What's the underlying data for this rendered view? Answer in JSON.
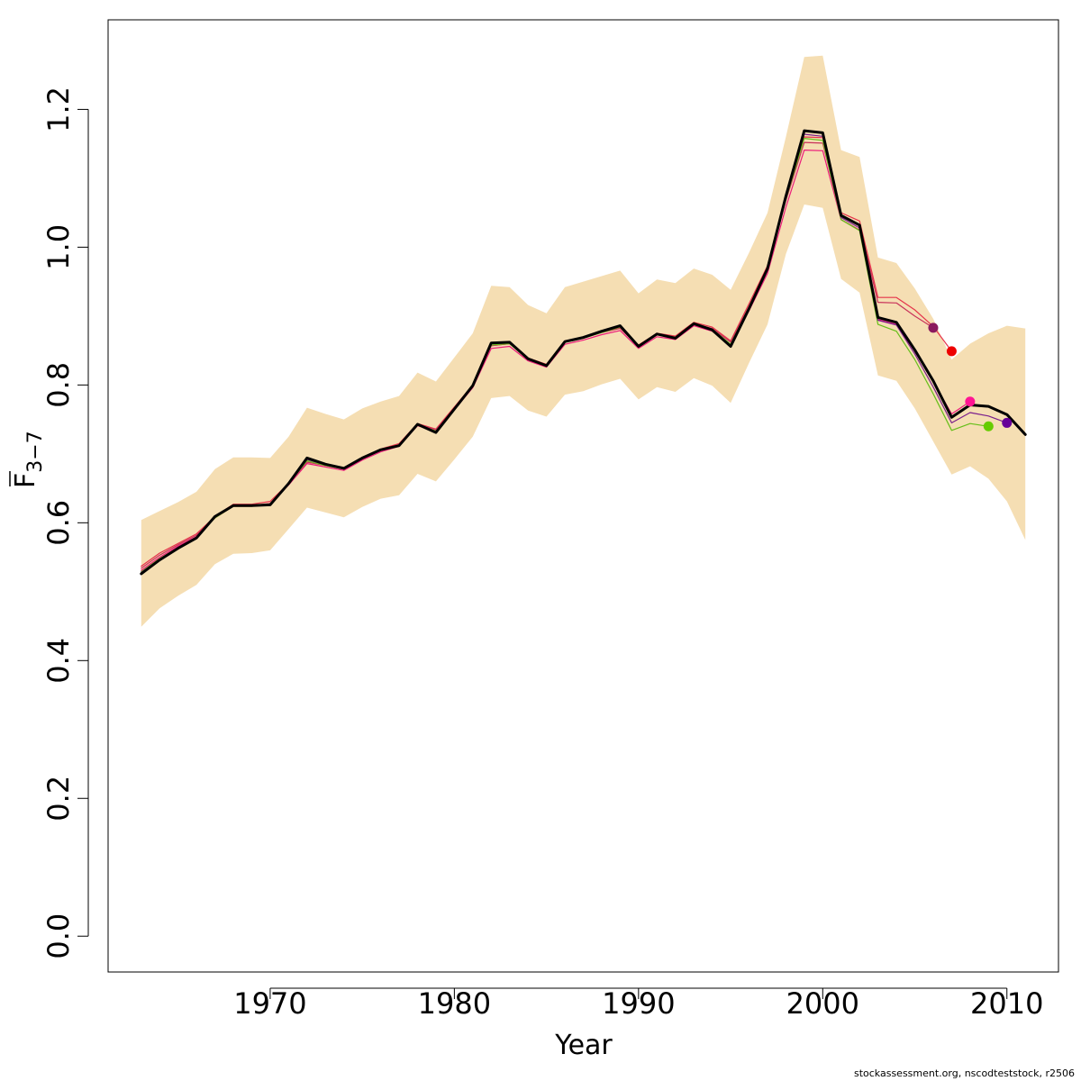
{
  "chart_data": {
    "type": "line",
    "xlabel": "Year",
    "ylabel_main": "F",
    "ylabel_sub": "3−7",
    "xlim": [
      1961.2,
      2012.8
    ],
    "ylim": [
      -0.052,
      1.33
    ],
    "x_ticks": [
      1970,
      1980,
      1990,
      2000,
      2010
    ],
    "x_tick_labels": [
      "1970",
      "1980",
      "1990",
      "2000",
      "2010"
    ],
    "y_ticks": [
      0.0,
      0.2,
      0.4,
      0.6,
      0.8,
      1.0,
      1.2
    ],
    "y_tick_labels": [
      "0.0",
      "0.2",
      "0.4",
      "0.6",
      "0.8",
      "1.0",
      "1.2"
    ],
    "grid": false,
    "band_color": "#f5deb3",
    "main_series_color": "#000000",
    "confidence_band": {
      "years": [
        1963,
        1964,
        1965,
        1966,
        1967,
        1968,
        1969,
        1970,
        1971,
        1972,
        1973,
        1974,
        1975,
        1976,
        1977,
        1978,
        1979,
        1980,
        1981,
        1982,
        1983,
        1984,
        1985,
        1986,
        1987,
        1988,
        1989,
        1990,
        1991,
        1992,
        1993,
        1994,
        1995,
        1996,
        1997,
        1998,
        1999,
        2000,
        2001,
        2002,
        2003,
        2004,
        2005,
        2006,
        2007,
        2008,
        2009,
        2010,
        2011
      ],
      "lower": [
        0.449,
        0.476,
        0.494,
        0.51,
        0.54,
        0.555,
        0.556,
        0.56,
        0.591,
        0.622,
        0.615,
        0.608,
        0.623,
        0.635,
        0.64,
        0.671,
        0.66,
        0.692,
        0.725,
        0.781,
        0.784,
        0.763,
        0.754,
        0.786,
        0.791,
        0.801,
        0.809,
        0.779,
        0.797,
        0.79,
        0.81,
        0.799,
        0.774,
        0.832,
        0.888,
        0.99,
        1.062,
        1.057,
        0.954,
        0.934,
        0.814,
        0.806,
        0.766,
        0.718,
        0.67,
        0.682,
        0.664,
        0.631,
        0.575
      ],
      "upper": [
        0.604,
        0.617,
        0.63,
        0.645,
        0.678,
        0.695,
        0.695,
        0.694,
        0.725,
        0.767,
        0.758,
        0.75,
        0.766,
        0.776,
        0.784,
        0.818,
        0.805,
        0.84,
        0.875,
        0.944,
        0.942,
        0.916,
        0.904,
        0.942,
        0.95,
        0.958,
        0.966,
        0.933,
        0.953,
        0.948,
        0.969,
        0.96,
        0.938,
        0.992,
        1.05,
        1.16,
        1.276,
        1.278,
        1.141,
        1.131,
        0.985,
        0.977,
        0.94,
        0.896,
        0.837,
        0.86,
        0.875,
        0.886,
        0.882
      ]
    },
    "series": [
      {
        "color": "#000000",
        "width": 3,
        "x": [
          1963,
          1964,
          1965,
          1966,
          1967,
          1968,
          1969,
          1970,
          1971,
          1972,
          1973,
          1974,
          1975,
          1976,
          1977,
          1978,
          1979,
          1980,
          1981,
          1982,
          1983,
          1984,
          1985,
          1986,
          1987,
          1988,
          1989,
          1990,
          1991,
          1992,
          1993,
          1994,
          1995,
          1996,
          1997,
          1998,
          1999,
          2000,
          2001,
          2002,
          2003,
          2004,
          2005,
          2006,
          2007,
          2008,
          2009,
          2010,
          2011
        ],
        "y": [
          0.526,
          0.546,
          0.563,
          0.578,
          0.609,
          0.625,
          0.625,
          0.626,
          0.657,
          0.694,
          0.685,
          0.679,
          0.694,
          0.706,
          0.712,
          0.743,
          0.731,
          0.765,
          0.799,
          0.861,
          0.862,
          0.838,
          0.828,
          0.863,
          0.869,
          0.878,
          0.886,
          0.856,
          0.874,
          0.868,
          0.889,
          0.88,
          0.856,
          0.911,
          0.969,
          1.074,
          1.169,
          1.166,
          1.046,
          1.032,
          0.898,
          0.891,
          0.851,
          0.806,
          0.753,
          0.771,
          0.769,
          0.757,
          0.728
        ]
      },
      {
        "color": "#e5334b",
        "width": 1.2,
        "x": [
          1963,
          1964,
          1965,
          1966,
          1967,
          1968,
          1969,
          1970,
          1971,
          1972,
          1973,
          1974,
          1975,
          1976,
          1977,
          1978,
          1979,
          1980,
          1981,
          1982,
          1983,
          1984,
          1985,
          1986,
          1987,
          1988,
          1989,
          1990,
          1991,
          1992,
          1993,
          1994,
          1995,
          1996,
          1997,
          1998,
          1999,
          2000,
          2001,
          2002,
          2003,
          2004,
          2005,
          2006,
          2007
        ],
        "y": [
          0.537,
          0.556,
          0.57,
          0.584,
          0.609,
          0.627,
          0.627,
          0.631,
          0.657,
          0.688,
          0.684,
          0.678,
          0.694,
          0.707,
          0.715,
          0.744,
          0.736,
          0.768,
          0.8,
          0.857,
          0.86,
          0.839,
          0.83,
          0.864,
          0.869,
          0.877,
          0.883,
          0.858,
          0.875,
          0.871,
          0.891,
          0.884,
          0.864,
          0.918,
          0.973,
          1.073,
          1.16,
          1.159,
          1.05,
          1.038,
          0.927,
          0.927,
          0.909,
          0.885,
          0.849
        ]
      },
      {
        "color": "#c8325a",
        "width": 1.2,
        "x": [
          1963,
          1964,
          1965,
          1966,
          1967,
          1968,
          1969,
          1970,
          1971,
          1972,
          1973,
          1974,
          1975,
          1976,
          1977,
          1978,
          1979,
          1980,
          1981,
          1982,
          1983,
          1984,
          1985,
          1986,
          1987,
          1988,
          1989,
          1990,
          1991,
          1992,
          1993,
          1994,
          1995,
          1996,
          1997,
          1998,
          1999,
          2000,
          2001,
          2002,
          2003,
          2004,
          2005,
          2006
        ],
        "y": [
          0.534,
          0.553,
          0.568,
          0.582,
          0.608,
          0.625,
          0.625,
          0.628,
          0.656,
          0.688,
          0.683,
          0.678,
          0.693,
          0.705,
          0.713,
          0.743,
          0.735,
          0.766,
          0.798,
          0.857,
          0.86,
          0.838,
          0.829,
          0.862,
          0.868,
          0.876,
          0.882,
          0.856,
          0.873,
          0.869,
          0.889,
          0.882,
          0.862,
          0.914,
          0.97,
          1.068,
          1.152,
          1.151,
          1.045,
          1.032,
          0.92,
          0.919,
          0.9,
          0.883
        ]
      },
      {
        "color": "#ec1a7a",
        "width": 1.2,
        "x": [
          1963,
          1964,
          1965,
          1966,
          1967,
          1968,
          1969,
          1970,
          1971,
          1972,
          1973,
          1974,
          1975,
          1976,
          1977,
          1978,
          1979,
          1980,
          1981,
          1982,
          1983,
          1984,
          1985,
          1986,
          1987,
          1988,
          1989,
          1990,
          1991,
          1992,
          1993,
          1994,
          1995,
          1996,
          1997,
          1998,
          1999,
          2000,
          2001,
          2002,
          2003,
          2004,
          2005,
          2006,
          2007,
          2008
        ],
        "y": [
          0.531,
          0.55,
          0.566,
          0.58,
          0.607,
          0.624,
          0.624,
          0.627,
          0.655,
          0.686,
          0.681,
          0.676,
          0.691,
          0.703,
          0.711,
          0.741,
          0.733,
          0.764,
          0.796,
          0.853,
          0.856,
          0.835,
          0.826,
          0.859,
          0.865,
          0.873,
          0.879,
          0.853,
          0.87,
          0.866,
          0.886,
          0.878,
          0.858,
          0.908,
          0.962,
          1.058,
          1.141,
          1.14,
          1.04,
          1.025,
          0.895,
          0.888,
          0.849,
          0.805,
          0.758,
          0.776
        ]
      },
      {
        "color": "#66bf1a",
        "width": 1.2,
        "x": [
          1963,
          1964,
          1965,
          1966,
          1967,
          1968,
          1969,
          1970,
          1971,
          1972,
          1973,
          1974,
          1975,
          1976,
          1977,
          1978,
          1979,
          1980,
          1981,
          1982,
          1983,
          1984,
          1985,
          1986,
          1987,
          1988,
          1989,
          1990,
          1991,
          1992,
          1993,
          1994,
          1995,
          1996,
          1997,
          1998,
          1999,
          2000,
          2001,
          2002,
          2003,
          2004,
          2005,
          2006,
          2007,
          2008,
          2009
        ],
        "y": [
          0.529,
          0.548,
          0.564,
          0.579,
          0.607,
          0.624,
          0.624,
          0.626,
          0.656,
          0.69,
          0.683,
          0.678,
          0.693,
          0.705,
          0.712,
          0.743,
          0.733,
          0.765,
          0.798,
          0.858,
          0.86,
          0.837,
          0.828,
          0.862,
          0.868,
          0.876,
          0.884,
          0.856,
          0.873,
          0.869,
          0.889,
          0.881,
          0.859,
          0.913,
          0.969,
          1.07,
          1.158,
          1.155,
          1.04,
          1.024,
          0.888,
          0.878,
          0.837,
          0.787,
          0.734,
          0.744,
          0.74
        ]
      },
      {
        "color": "#7a1f8c",
        "width": 1.2,
        "x": [
          1963,
          1964,
          1965,
          1966,
          1967,
          1968,
          1969,
          1970,
          1971,
          1972,
          1973,
          1974,
          1975,
          1976,
          1977,
          1978,
          1979,
          1980,
          1981,
          1982,
          1983,
          1984,
          1985,
          1986,
          1987,
          1988,
          1989,
          1990,
          1991,
          1992,
          1993,
          1994,
          1995,
          1996,
          1997,
          1998,
          1999,
          2000,
          2001,
          2002,
          2003,
          2004,
          2005,
          2006,
          2007,
          2008,
          2009,
          2010
        ],
        "y": [
          0.528,
          0.547,
          0.564,
          0.579,
          0.608,
          0.625,
          0.625,
          0.627,
          0.656,
          0.692,
          0.684,
          0.678,
          0.693,
          0.705,
          0.712,
          0.743,
          0.732,
          0.765,
          0.798,
          0.86,
          0.861,
          0.838,
          0.828,
          0.862,
          0.868,
          0.877,
          0.885,
          0.856,
          0.873,
          0.868,
          0.889,
          0.88,
          0.857,
          0.912,
          0.969,
          1.072,
          1.164,
          1.161,
          1.043,
          1.028,
          0.894,
          0.887,
          0.845,
          0.797,
          0.745,
          0.76,
          0.755,
          0.745
        ]
      }
    ],
    "end_points": [
      {
        "x": 2006,
        "y": 0.883,
        "color": "#8b1a5e"
      },
      {
        "x": 2007,
        "y": 0.849,
        "color": "#ee0000"
      },
      {
        "x": 2008,
        "y": 0.776,
        "color": "#ff1493"
      },
      {
        "x": 2009,
        "y": 0.74,
        "color": "#66cc00"
      },
      {
        "x": 2010,
        "y": 0.745,
        "color": "#660099"
      }
    ]
  },
  "footer_text": "stockassessment.org, nscodteststock, r2506"
}
